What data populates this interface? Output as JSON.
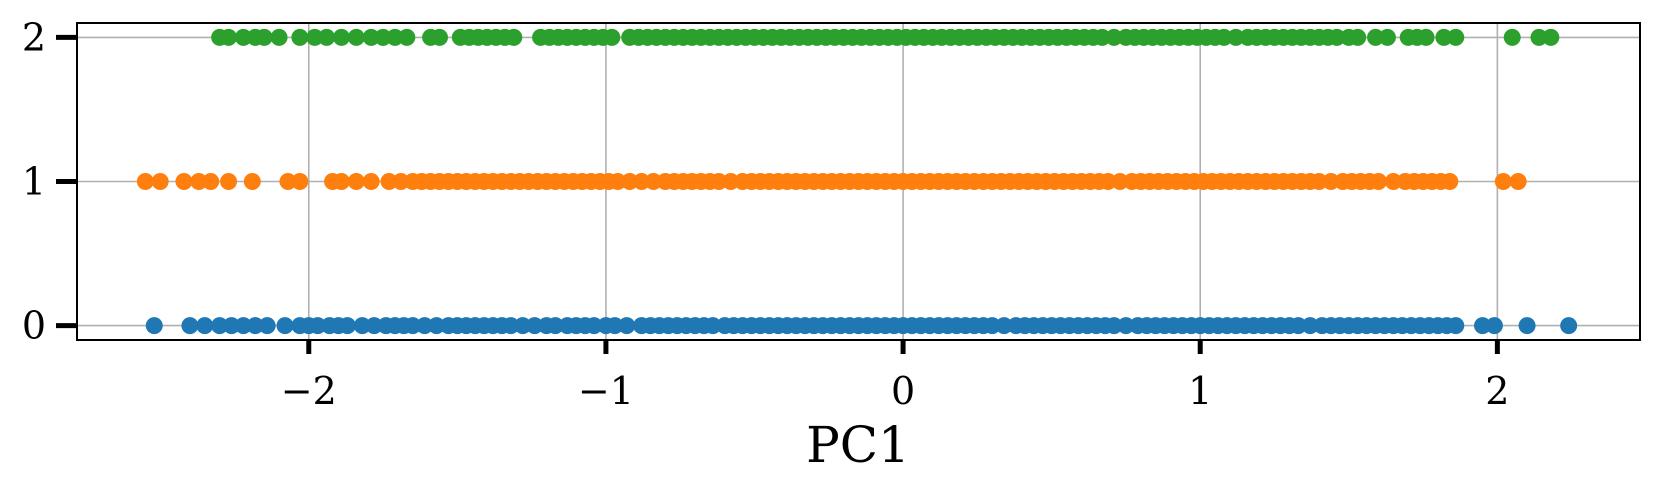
{
  "chart_data": {
    "type": "scatter",
    "title": "",
    "xlabel": "PC1",
    "ylabel": "",
    "xlim": [
      -2.78,
      2.48
    ],
    "ylim": [
      -0.1,
      2.1
    ],
    "x_ticks": [
      "−2",
      "−1",
      "0",
      "1",
      "2"
    ],
    "x_tick_values": [
      -2,
      -1,
      0,
      1,
      2
    ],
    "y_ticks": [
      "0",
      "1",
      "2"
    ],
    "y_tick_values": [
      0,
      1,
      2
    ],
    "grid": true,
    "series": [
      {
        "color": "#1f77b4",
        "y": 0,
        "x": [
          -2.52,
          -2.4,
          -2.35,
          -2.3,
          -2.26,
          -2.22,
          -2.18,
          -2.14,
          -2.08,
          -2.03,
          -2.0,
          -1.97,
          -1.93,
          -1.9,
          -1.87,
          -1.82,
          -1.78,
          -1.74,
          -1.71,
          -1.68,
          -1.65,
          -1.61,
          -1.57,
          -1.53,
          -1.5,
          -1.47,
          -1.44,
          -1.41,
          -1.38,
          -1.35,
          -1.32,
          -1.28,
          -1.24,
          -1.2,
          -1.17,
          -1.13,
          -1.1,
          -1.07,
          -1.04,
          -1.0,
          -0.97,
          -0.93,
          -0.88,
          -0.85,
          -0.82,
          -0.79,
          -0.76,
          -0.73,
          -0.7,
          -0.67,
          -0.64,
          -0.6,
          -0.57,
          -0.54,
          -0.51,
          -0.48,
          -0.45,
          -0.42,
          -0.39,
          -0.36,
          -0.33,
          -0.3,
          -0.27,
          -0.24,
          -0.21,
          -0.18,
          -0.15,
          -0.12,
          -0.09,
          -0.06,
          -0.03,
          0.0,
          0.03,
          0.06,
          0.09,
          0.12,
          0.15,
          0.18,
          0.21,
          0.24,
          0.27,
          0.3,
          0.34,
          0.38,
          0.41,
          0.44,
          0.47,
          0.5,
          0.53,
          0.56,
          0.59,
          0.62,
          0.65,
          0.68,
          0.71,
          0.75,
          0.79,
          0.82,
          0.85,
          0.88,
          0.91,
          0.94,
          0.97,
          1.0,
          1.03,
          1.06,
          1.09,
          1.12,
          1.15,
          1.18,
          1.21,
          1.24,
          1.27,
          1.3,
          1.33,
          1.37,
          1.41,
          1.44,
          1.47,
          1.5,
          1.53,
          1.56,
          1.59,
          1.62,
          1.65,
          1.68,
          1.71,
          1.74,
          1.77,
          1.8,
          1.83,
          1.86,
          1.95,
          1.99,
          2.1,
          2.24
        ]
      },
      {
        "color": "#ff7f0e",
        "y": 1,
        "x": [
          -2.55,
          -2.5,
          -2.42,
          -2.37,
          -2.33,
          -2.27,
          -2.19,
          -2.07,
          -2.03,
          -1.92,
          -1.89,
          -1.84,
          -1.79,
          -1.73,
          -1.69,
          -1.65,
          -1.62,
          -1.59,
          -1.56,
          -1.53,
          -1.5,
          -1.47,
          -1.44,
          -1.41,
          -1.38,
          -1.35,
          -1.32,
          -1.29,
          -1.26,
          -1.23,
          -1.2,
          -1.17,
          -1.14,
          -1.11,
          -1.08,
          -1.05,
          -1.02,
          -0.99,
          -0.96,
          -0.92,
          -0.88,
          -0.84,
          -0.8,
          -0.77,
          -0.74,
          -0.71,
          -0.68,
          -0.65,
          -0.62,
          -0.58,
          -0.54,
          -0.51,
          -0.48,
          -0.45,
          -0.42,
          -0.39,
          -0.36,
          -0.33,
          -0.3,
          -0.27,
          -0.24,
          -0.21,
          -0.18,
          -0.15,
          -0.12,
          -0.09,
          -0.06,
          -0.03,
          0.0,
          0.03,
          0.06,
          0.09,
          0.12,
          0.15,
          0.18,
          0.21,
          0.24,
          0.27,
          0.3,
          0.33,
          0.36,
          0.39,
          0.42,
          0.45,
          0.48,
          0.51,
          0.54,
          0.57,
          0.6,
          0.63,
          0.66,
          0.69,
          0.73,
          0.77,
          0.8,
          0.83,
          0.86,
          0.89,
          0.92,
          0.95,
          0.98,
          1.01,
          1.04,
          1.07,
          1.1,
          1.13,
          1.16,
          1.19,
          1.22,
          1.25,
          1.28,
          1.31,
          1.34,
          1.37,
          1.4,
          1.44,
          1.48,
          1.51,
          1.54,
          1.57,
          1.6,
          1.65,
          1.69,
          1.72,
          1.75,
          1.78,
          1.81,
          1.84,
          2.02,
          2.07
        ]
      },
      {
        "color": "#2ca02c",
        "y": 2,
        "x": [
          -2.3,
          -2.27,
          -2.22,
          -2.18,
          -2.15,
          -2.1,
          -2.03,
          -1.98,
          -1.94,
          -1.89,
          -1.84,
          -1.79,
          -1.75,
          -1.71,
          -1.67,
          -1.59,
          -1.56,
          -1.49,
          -1.46,
          -1.43,
          -1.4,
          -1.37,
          -1.34,
          -1.31,
          -1.22,
          -1.19,
          -1.16,
          -1.13,
          -1.1,
          -1.07,
          -1.04,
          -1.01,
          -0.98,
          -0.92,
          -0.89,
          -0.86,
          -0.83,
          -0.8,
          -0.77,
          -0.74,
          -0.71,
          -0.68,
          -0.65,
          -0.62,
          -0.59,
          -0.56,
          -0.53,
          -0.5,
          -0.47,
          -0.44,
          -0.41,
          -0.38,
          -0.35,
          -0.32,
          -0.29,
          -0.26,
          -0.23,
          -0.2,
          -0.17,
          -0.14,
          -0.11,
          -0.08,
          -0.05,
          -0.02,
          0.01,
          0.04,
          0.07,
          0.1,
          0.13,
          0.16,
          0.19,
          0.22,
          0.25,
          0.28,
          0.31,
          0.34,
          0.37,
          0.4,
          0.43,
          0.46,
          0.49,
          0.52,
          0.55,
          0.58,
          0.61,
          0.64,
          0.67,
          0.71,
          0.75,
          0.78,
          0.81,
          0.84,
          0.87,
          0.9,
          0.93,
          0.96,
          0.99,
          1.02,
          1.05,
          1.08,
          1.12,
          1.16,
          1.19,
          1.22,
          1.25,
          1.28,
          1.31,
          1.34,
          1.37,
          1.4,
          1.43,
          1.46,
          1.5,
          1.53,
          1.59,
          1.63,
          1.7,
          1.73,
          1.76,
          1.82,
          1.86,
          2.05,
          2.14,
          2.18
        ]
      }
    ]
  }
}
